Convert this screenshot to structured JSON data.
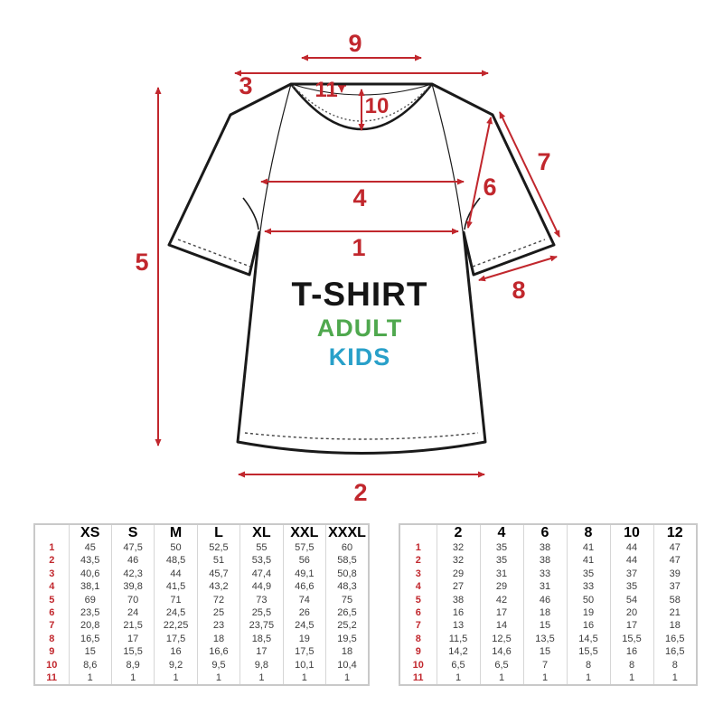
{
  "diagram": {
    "title": "T-SHIRT",
    "audience_adult": "ADULT",
    "audience_kids": "KIDS",
    "measure_labels": [
      "1",
      "2",
      "3",
      "4",
      "5",
      "6",
      "7",
      "8",
      "9",
      "10",
      "11"
    ]
  },
  "colors": {
    "measure_red": "#c1272d",
    "adult_green": "#4fa84e",
    "kids_blue": "#29a0c9",
    "shirt_outline": "#1a1a1a"
  },
  "tables": {
    "adult": {
      "headers": [
        "XS",
        "S",
        "M",
        "L",
        "XL",
        "XXL",
        "XXXL"
      ],
      "row_labels": [
        "1",
        "2",
        "3",
        "4",
        "5",
        "6",
        "7",
        "8",
        "9",
        "10",
        "11"
      ],
      "rows": [
        [
          "45",
          "47,5",
          "50",
          "52,5",
          "55",
          "57,5",
          "60"
        ],
        [
          "43,5",
          "46",
          "48,5",
          "51",
          "53,5",
          "56",
          "58,5"
        ],
        [
          "40,6",
          "42,3",
          "44",
          "45,7",
          "47,4",
          "49,1",
          "50,8"
        ],
        [
          "38,1",
          "39,8",
          "41,5",
          "43,2",
          "44,9",
          "46,6",
          "48,3"
        ],
        [
          "69",
          "70",
          "71",
          "72",
          "73",
          "74",
          "75"
        ],
        [
          "23,5",
          "24",
          "24,5",
          "25",
          "25,5",
          "26",
          "26,5"
        ],
        [
          "20,8",
          "21,5",
          "22,25",
          "23",
          "23,75",
          "24,5",
          "25,2"
        ],
        [
          "16,5",
          "17",
          "17,5",
          "18",
          "18,5",
          "19",
          "19,5"
        ],
        [
          "15",
          "15,5",
          "16",
          "16,6",
          "17",
          "17,5",
          "18"
        ],
        [
          "8,6",
          "8,9",
          "9,2",
          "9,5",
          "9,8",
          "10,1",
          "10,4"
        ],
        [
          "1",
          "1",
          "1",
          "1",
          "1",
          "1",
          "1"
        ]
      ]
    },
    "kids": {
      "headers": [
        "2",
        "4",
        "6",
        "8",
        "10",
        "12"
      ],
      "row_labels": [
        "1",
        "2",
        "3",
        "4",
        "5",
        "6",
        "7",
        "8",
        "9",
        "10",
        "11"
      ],
      "rows": [
        [
          "32",
          "35",
          "38",
          "41",
          "44",
          "47"
        ],
        [
          "32",
          "35",
          "38",
          "41",
          "44",
          "47"
        ],
        [
          "29",
          "31",
          "33",
          "35",
          "37",
          "39"
        ],
        [
          "27",
          "29",
          "31",
          "33",
          "35",
          "37"
        ],
        [
          "38",
          "42",
          "46",
          "50",
          "54",
          "58"
        ],
        [
          "16",
          "17",
          "18",
          "19",
          "20",
          "21"
        ],
        [
          "13",
          "14",
          "15",
          "16",
          "17",
          "18"
        ],
        [
          "11,5",
          "12,5",
          "13,5",
          "14,5",
          "15,5",
          "16,5"
        ],
        [
          "14,2",
          "14,6",
          "15",
          "15,5",
          "16",
          "16,5"
        ],
        [
          "6,5",
          "6,5",
          "7",
          "8",
          "8",
          "8"
        ],
        [
          "1",
          "1",
          "1",
          "1",
          "1",
          "1"
        ]
      ]
    }
  }
}
